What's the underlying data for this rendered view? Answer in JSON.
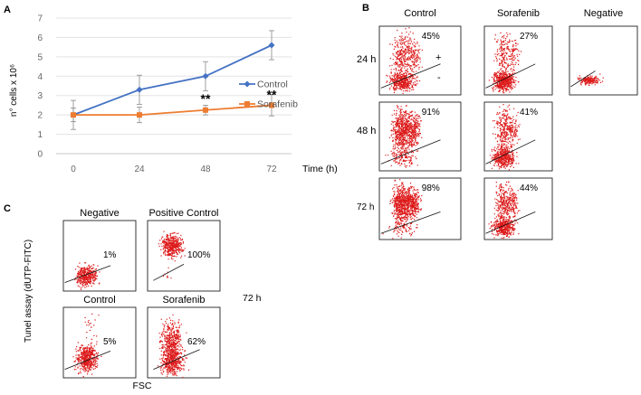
{
  "panel_labels": {
    "a": "A",
    "b": "B",
    "c": "C"
  },
  "chart_data": [
    {
      "type": "line",
      "panel": "A",
      "title": "",
      "xlabel": "Time (h)",
      "ylabel": "n° cells x 10⁶",
      "ylim": [
        0,
        7
      ],
      "yticks": [
        "0",
        "1",
        "2",
        "3",
        "4",
        "5",
        "6",
        "7"
      ],
      "categories": [
        "0",
        "24",
        "48",
        "72"
      ],
      "grid": true,
      "legend_position": "right",
      "series": [
        {
          "name": "Control",
          "color": "#4472C4",
          "marker": "diamond",
          "values": [
            2.0,
            3.3,
            4.0,
            5.6
          ],
          "errors": [
            0.75,
            0.75,
            0.75,
            0.75
          ]
        },
        {
          "name": "Sorafenib",
          "color": "#ED7D31",
          "marker": "square",
          "values": [
            2.0,
            2.0,
            2.25,
            2.5
          ],
          "errors": [
            0.35,
            0.4,
            0.25,
            0.55
          ]
        }
      ],
      "annotations": [
        {
          "category": "48",
          "y": 2.9,
          "text": "**"
        },
        {
          "category": "72",
          "y": 3.1,
          "text": "**"
        }
      ]
    },
    {
      "type": "scatter",
      "panel": "B",
      "description": "flow cytometry dot plots",
      "columns": [
        "Control",
        "Sorafenib",
        "Negative"
      ],
      "rows": [
        {
          "time": "24 h",
          "values": [
            "45%",
            "27%",
            ""
          ]
        },
        {
          "time": "48 h",
          "values": [
            "91%",
            "41%"
          ]
        },
        {
          "time": "72 h",
          "values": [
            "98%",
            "44%"
          ]
        }
      ],
      "gate_labels": {
        "positive": "+",
        "negative": "-"
      },
      "point_color": "#DD1A1A"
    },
    {
      "type": "scatter",
      "panel": "C",
      "ylabel": "Tunel assay (dUTP-FITC)",
      "xlabel": "FSC",
      "time_label": "72 h",
      "plots": [
        {
          "title": "Negative",
          "value": "1%"
        },
        {
          "title": "Positive Control",
          "value": "100%"
        },
        {
          "title": "Control",
          "value": "5%"
        },
        {
          "title": "Sorafenib",
          "value": "62%"
        }
      ]
    }
  ]
}
